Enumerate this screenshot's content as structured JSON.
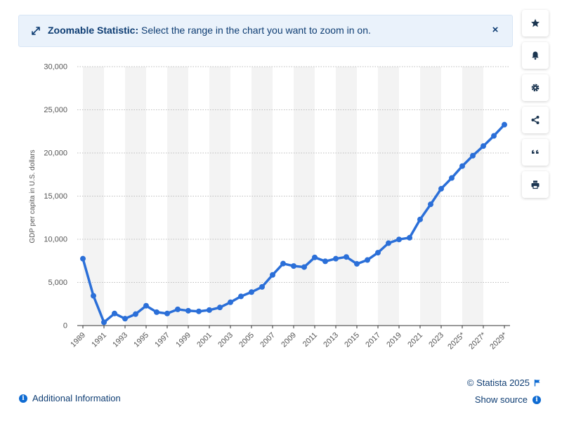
{
  "banner": {
    "title_bold": "Zoomable Statistic:",
    "title_rest": " Select the range in the chart you want to zoom in on.",
    "close_symbol": "×"
  },
  "sidebar": {
    "items": [
      {
        "icon": "star-icon"
      },
      {
        "icon": "bell-icon"
      },
      {
        "icon": "gear-icon"
      },
      {
        "icon": "share-icon"
      },
      {
        "icon": "quote-icon"
      },
      {
        "icon": "print-icon"
      }
    ]
  },
  "footer": {
    "additional_info": "Additional Information",
    "copyright": "© Statista 2025",
    "show_source": "Show source",
    "info_glyph": "i"
  },
  "colors": {
    "line": "#2b6fd8",
    "banner_bg": "#eaf2fb",
    "link": "#0e3d73",
    "accent": "#0e6bd2"
  },
  "chart_data": {
    "type": "line",
    "title": "",
    "xlabel": "",
    "ylabel": "GDP per capita in U.S. dollars",
    "ylim": [
      0,
      30000
    ],
    "yticks": [
      0,
      5000,
      10000,
      15000,
      20000,
      25000,
      30000
    ],
    "ytick_labels": [
      "0",
      "5,000",
      "10,000",
      "15,000",
      "20,000",
      "25,000",
      "30,000"
    ],
    "x": [
      1989,
      1990,
      1991,
      1992,
      1993,
      1994,
      1995,
      1996,
      1997,
      1998,
      1999,
      2000,
      2001,
      2002,
      2003,
      2004,
      2005,
      2006,
      2007,
      2008,
      2009,
      2010,
      2011,
      2012,
      2013,
      2014,
      2015,
      2016,
      2017,
      2018,
      2019,
      2020,
      2021,
      2022,
      2023,
      2024,
      2025,
      2026,
      2027,
      2028,
      2029
    ],
    "xtick_labels": [
      "1989",
      "1991",
      "1993",
      "1995",
      "1997",
      "1999",
      "2001",
      "2003",
      "2005",
      "2007",
      "2009",
      "2011",
      "2013",
      "2015",
      "2017",
      "2019",
      "2021",
      "2023",
      "2025*",
      "2027*",
      "2029*"
    ],
    "grid": true,
    "series": [
      {
        "values": [
          7750,
          3450,
          380,
          1400,
          800,
          1330,
          2300,
          1550,
          1400,
          1880,
          1720,
          1650,
          1800,
          2100,
          2700,
          3380,
          3880,
          4480,
          5870,
          7180,
          6900,
          6780,
          7900,
          7450,
          7750,
          7950,
          7150,
          7600,
          8450,
          9550,
          9980,
          10180,
          12300,
          14050,
          15850,
          17100,
          18480,
          19680,
          20800,
          21980,
          23280
        ]
      }
    ]
  }
}
